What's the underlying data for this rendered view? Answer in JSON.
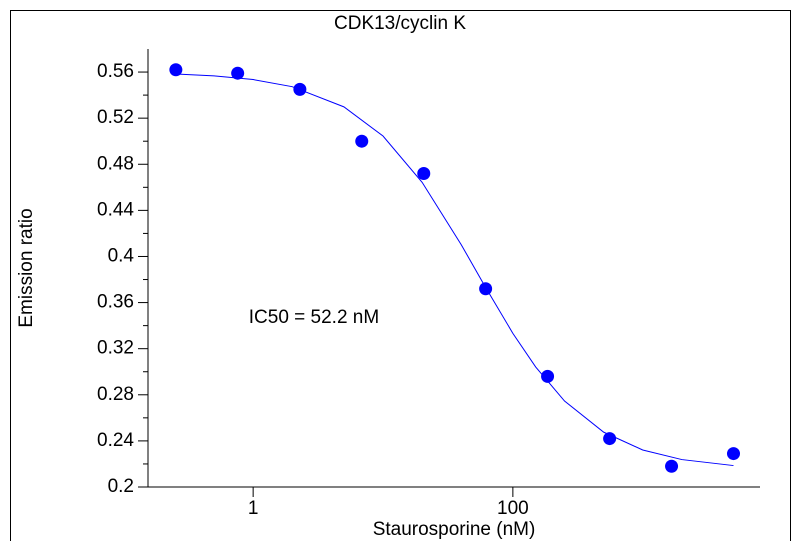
{
  "chart_data": {
    "type": "scatter",
    "title": "CDK13/cyclin K",
    "x_label": "Staurosporine (nM)",
    "y_label": "Emission ratio",
    "annotation": "IC50 = 52.2 nM",
    "x_scale": "log",
    "series": [
      {
        "name": "data",
        "color": "#0000ff",
        "x": [
          0.254,
          0.76,
          2.29,
          6.86,
          20.6,
          61.7,
          185,
          556,
          1667,
          5000
        ],
        "values": [
          0.562,
          0.559,
          0.545,
          0.5,
          0.472,
          0.372,
          0.296,
          0.242,
          0.218,
          0.229
        ]
      },
      {
        "name": "fit",
        "color": "#0000ff",
        "x": [
          0.254,
          0.5,
          1,
          2,
          5,
          10,
          20,
          40,
          60,
          100,
          150,
          250,
          500,
          1000,
          2000,
          5000
        ],
        "values": [
          0.5583,
          0.5567,
          0.5535,
          0.5473,
          0.5298,
          0.5045,
          0.4644,
          0.4103,
          0.3755,
          0.3333,
          0.3041,
          0.2746,
          0.2476,
          0.2321,
          0.2238,
          0.2186
        ]
      }
    ],
    "xlim": [
      0.155,
      8000
    ],
    "xticks": [
      1,
      100
    ],
    "ylim": [
      0.2,
      0.58
    ],
    "yticks": [
      0.2,
      0.24,
      0.28,
      0.32,
      0.36,
      0.4,
      0.44,
      0.48,
      0.52,
      0.56
    ]
  }
}
